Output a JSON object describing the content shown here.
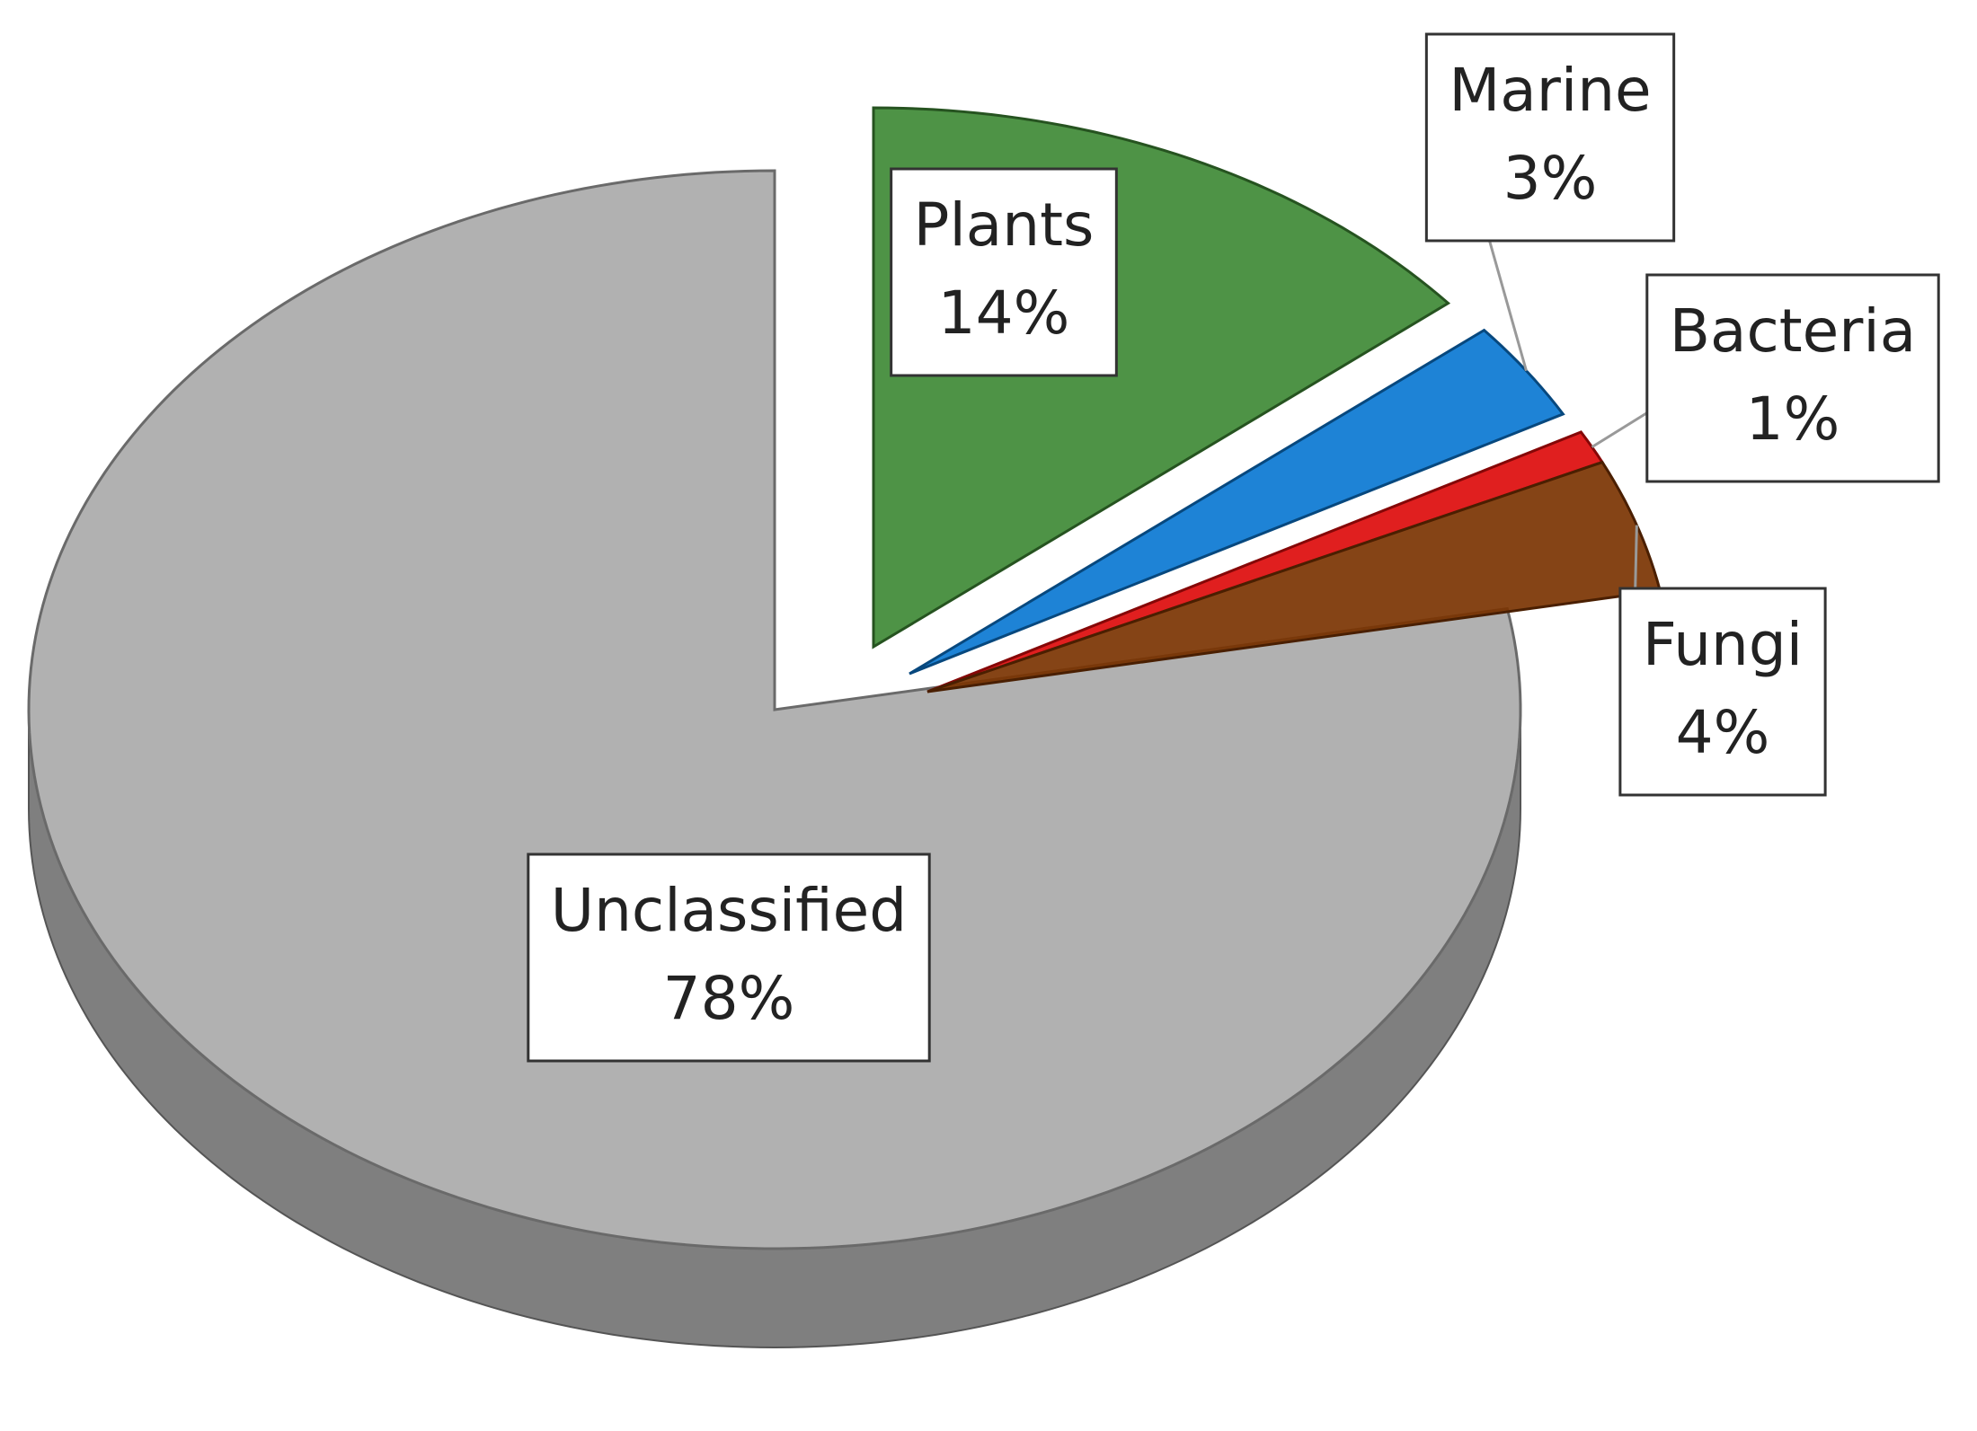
{
  "chart_data": {
    "type": "pie",
    "categories": [
      "Plants",
      "Marine",
      "Bacteria",
      "Fungi",
      "Unclassified"
    ],
    "values": [
      14,
      3,
      1,
      4,
      78
    ],
    "value_labels": [
      "14%",
      "3%",
      "1%",
      "4%",
      "78%"
    ],
    "colors": [
      "#3f8a36",
      "#0b78d2",
      "#dd0c0c",
      "#7b3402",
      "#b1b1b1"
    ]
  }
}
